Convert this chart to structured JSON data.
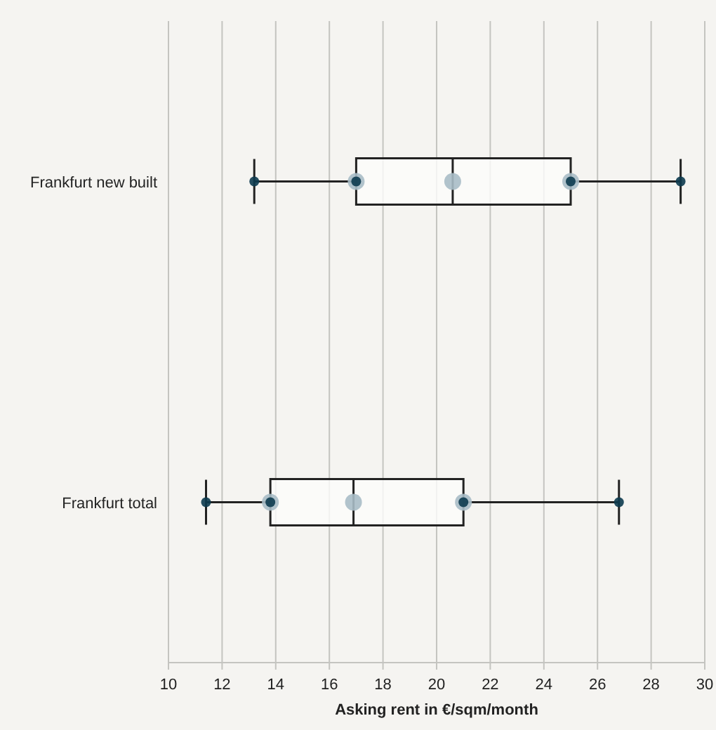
{
  "chart_data": {
    "type": "box",
    "orientation": "horizontal",
    "xlabel": "Asking rent in €/sqm/month",
    "categories": [
      "Frankfurt new built",
      "Frankfurt total"
    ],
    "boxes": [
      {
        "low": 13.2,
        "q1": 17.0,
        "median": 20.6,
        "q3": 25.0,
        "high": 29.1
      },
      {
        "low": 11.4,
        "q1": 13.8,
        "median": 16.9,
        "q3": 21.0,
        "high": 26.8
      }
    ],
    "series": [
      {
        "type": "scatter",
        "color": "#a9bcc6",
        "x": [
          "Frankfurt new built",
          "Frankfurt new built",
          "Frankfurt new built",
          "Frankfurt total",
          "Frankfurt total",
          "Frankfurt total"
        ],
        "values": [
          17.0,
          20.6,
          25.0,
          13.8,
          16.9,
          21.0
        ]
      },
      {
        "type": "scatter",
        "color": "#0d3b4f",
        "x": [
          "Frankfurt new built",
          "Frankfurt new built",
          "Frankfurt new built",
          "Frankfurt new built",
          "Frankfurt total",
          "Frankfurt total",
          "Frankfurt total",
          "Frankfurt total"
        ],
        "values": [
          13.2,
          17.0,
          25.0,
          29.1,
          11.4,
          13.8,
          21.0,
          26.8
        ]
      }
    ],
    "xlim": [
      10,
      30
    ],
    "xticks": [
      10,
      12,
      14,
      16,
      18,
      20,
      22,
      24,
      26,
      28,
      30
    ],
    "grid": "x",
    "marker": "circle"
  }
}
